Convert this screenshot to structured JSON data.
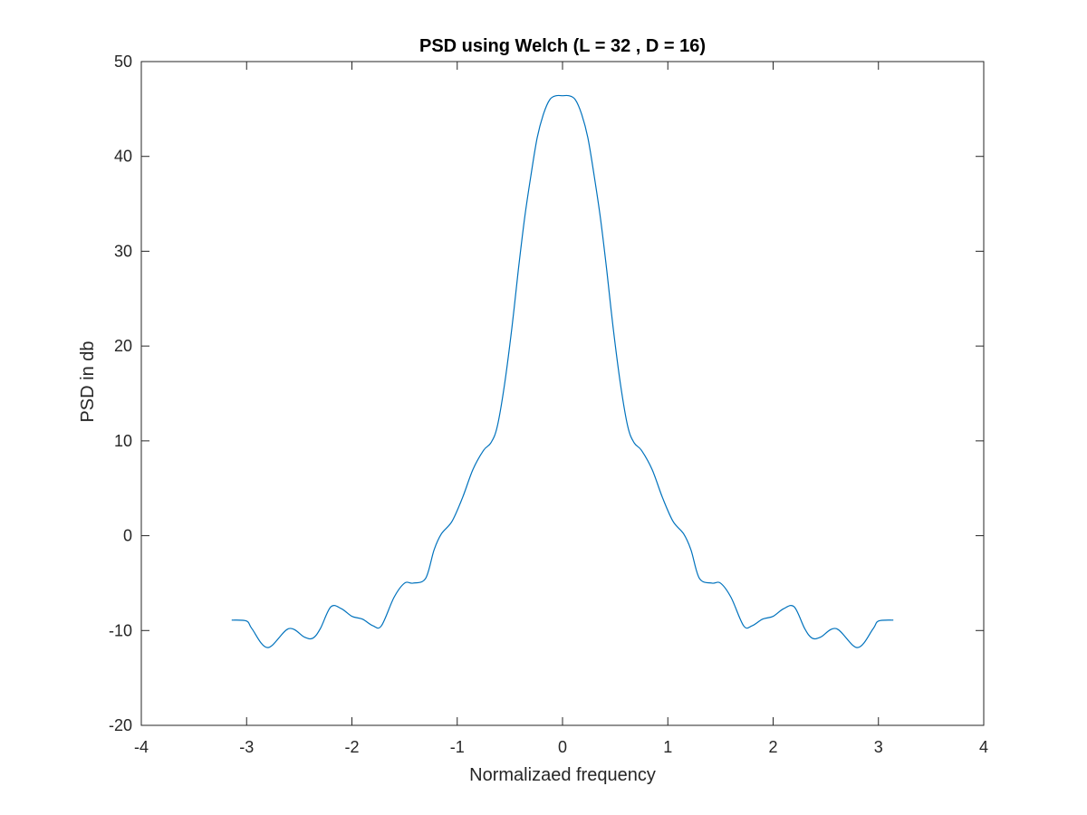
{
  "chart_data": {
    "type": "line",
    "title": "PSD using Welch (L = 32 , D = 16)",
    "xlabel": "Normalizaed frequency",
    "ylabel": "PSD in db",
    "xlim": [
      -4,
      4
    ],
    "ylim": [
      -20,
      50
    ],
    "xticks": [
      -4,
      -3,
      -2,
      -1,
      0,
      1,
      2,
      3,
      4
    ],
    "yticks": [
      -20,
      -10,
      0,
      10,
      20,
      30,
      40,
      50
    ],
    "xtick_labels": [
      "-4",
      "-3",
      "-2",
      "-1",
      "0",
      "1",
      "2",
      "3",
      "4"
    ],
    "ytick_labels": [
      "-20",
      "-10",
      "0",
      "10",
      "20",
      "30",
      "40",
      "50"
    ],
    "grid": false,
    "box": true,
    "series": [
      {
        "color": "#0072bd",
        "x": [
          -3.1416,
          -3.0,
          -2.95,
          -2.8,
          -2.6,
          -2.45,
          -2.37,
          -2.3,
          -2.2,
          -2.1,
          -2.0,
          -1.9,
          -1.8,
          -1.72,
          -1.6,
          -1.5,
          -1.42,
          -1.3,
          -1.22,
          -1.15,
          -1.05,
          -0.95,
          -0.85,
          -0.75,
          -0.68,
          -0.62,
          -0.55,
          -0.48,
          -0.42,
          -0.36,
          -0.3,
          -0.24,
          -0.18,
          -0.12,
          -0.06,
          0.0,
          0.06,
          0.12,
          0.18,
          0.24,
          0.3,
          0.36,
          0.42,
          0.48,
          0.55,
          0.62,
          0.68,
          0.75,
          0.85,
          0.95,
          1.05,
          1.15,
          1.22,
          1.3,
          1.42,
          1.5,
          1.6,
          1.72,
          1.8,
          1.9,
          2.0,
          2.1,
          2.2,
          2.3,
          2.37,
          2.45,
          2.6,
          2.8,
          2.95,
          3.0,
          3.1416
        ],
        "y": [
          -8.9,
          -9.0,
          -9.8,
          -11.8,
          -9.8,
          -10.7,
          -10.8,
          -9.8,
          -7.5,
          -7.7,
          -8.5,
          -8.8,
          -9.5,
          -9.5,
          -6.5,
          -5.0,
          -5.0,
          -4.5,
          -1.5,
          0.2,
          1.5,
          4.0,
          7.0,
          9.0,
          9.8,
          11.5,
          16.0,
          22.0,
          28.0,
          33.5,
          38.0,
          42.0,
          44.5,
          46.0,
          46.4,
          46.4,
          46.4,
          46.0,
          44.5,
          42.0,
          38.0,
          33.5,
          28.0,
          22.0,
          16.0,
          11.5,
          9.8,
          9.0,
          7.0,
          4.0,
          1.5,
          0.2,
          -1.5,
          -4.5,
          -5.0,
          -5.0,
          -6.5,
          -9.5,
          -9.5,
          -8.8,
          -8.5,
          -7.7,
          -7.5,
          -9.8,
          -10.8,
          -10.7,
          -9.8,
          -11.8,
          -9.8,
          -9.0,
          -8.9
        ]
      }
    ]
  }
}
